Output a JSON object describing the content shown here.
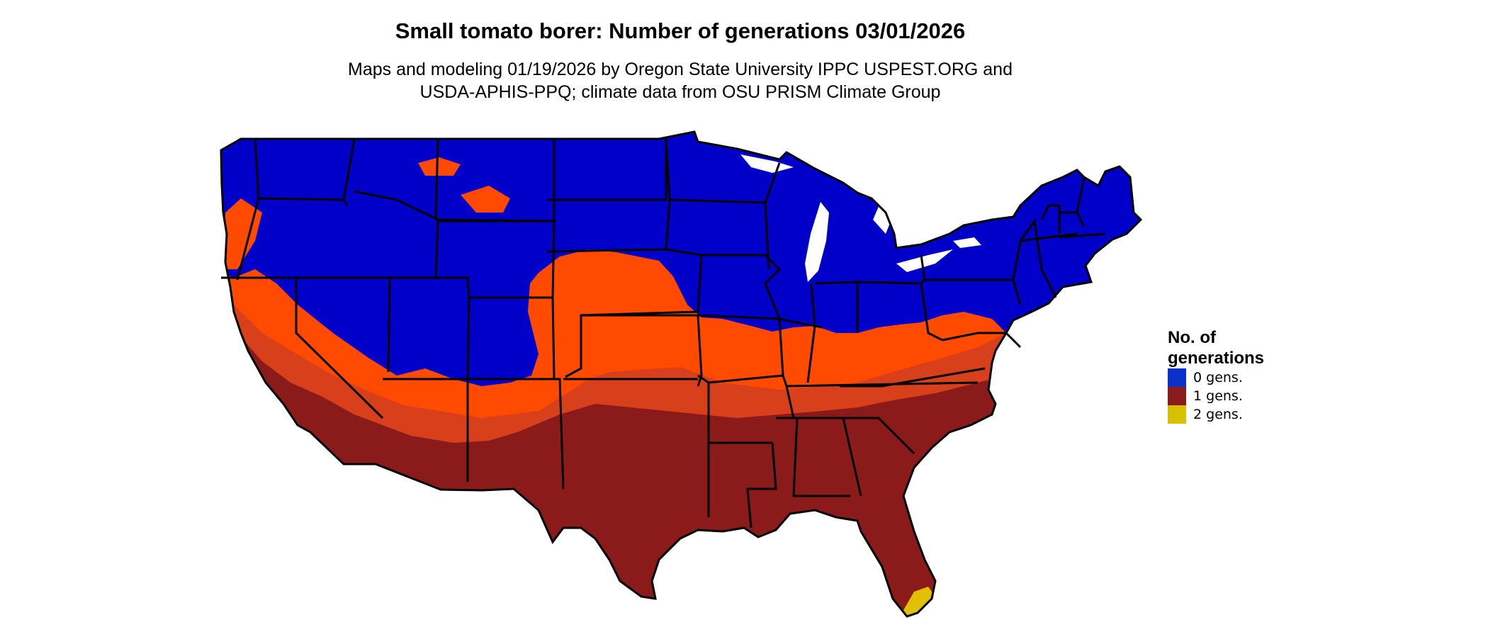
{
  "title": "Small tomato borer: Number of generations 03/01/2026",
  "subtitle": [
    "Maps and modeling 01/19/2026 by Oregon State University IPPC USPEST.ORG and",
    "USDA-APHIS-PPQ; climate data from OSU PRISM Climate Group"
  ],
  "legend": {
    "title_lines": [
      "No. of",
      "generations"
    ],
    "items": [
      {
        "label": "0 gens.",
        "color": "#0a32c8"
      },
      {
        "label": "1 gens.",
        "color": "#8b1a1a"
      },
      {
        "label": "2 gens.",
        "color": "#d7c000"
      }
    ]
  },
  "map_colors": {
    "zero": "#0000c8",
    "one_low": "#ff4a00",
    "one_mid": "#d8401c",
    "one_high": "#8b1a1a",
    "two": "#e0c000",
    "borders": "#000000"
  }
}
